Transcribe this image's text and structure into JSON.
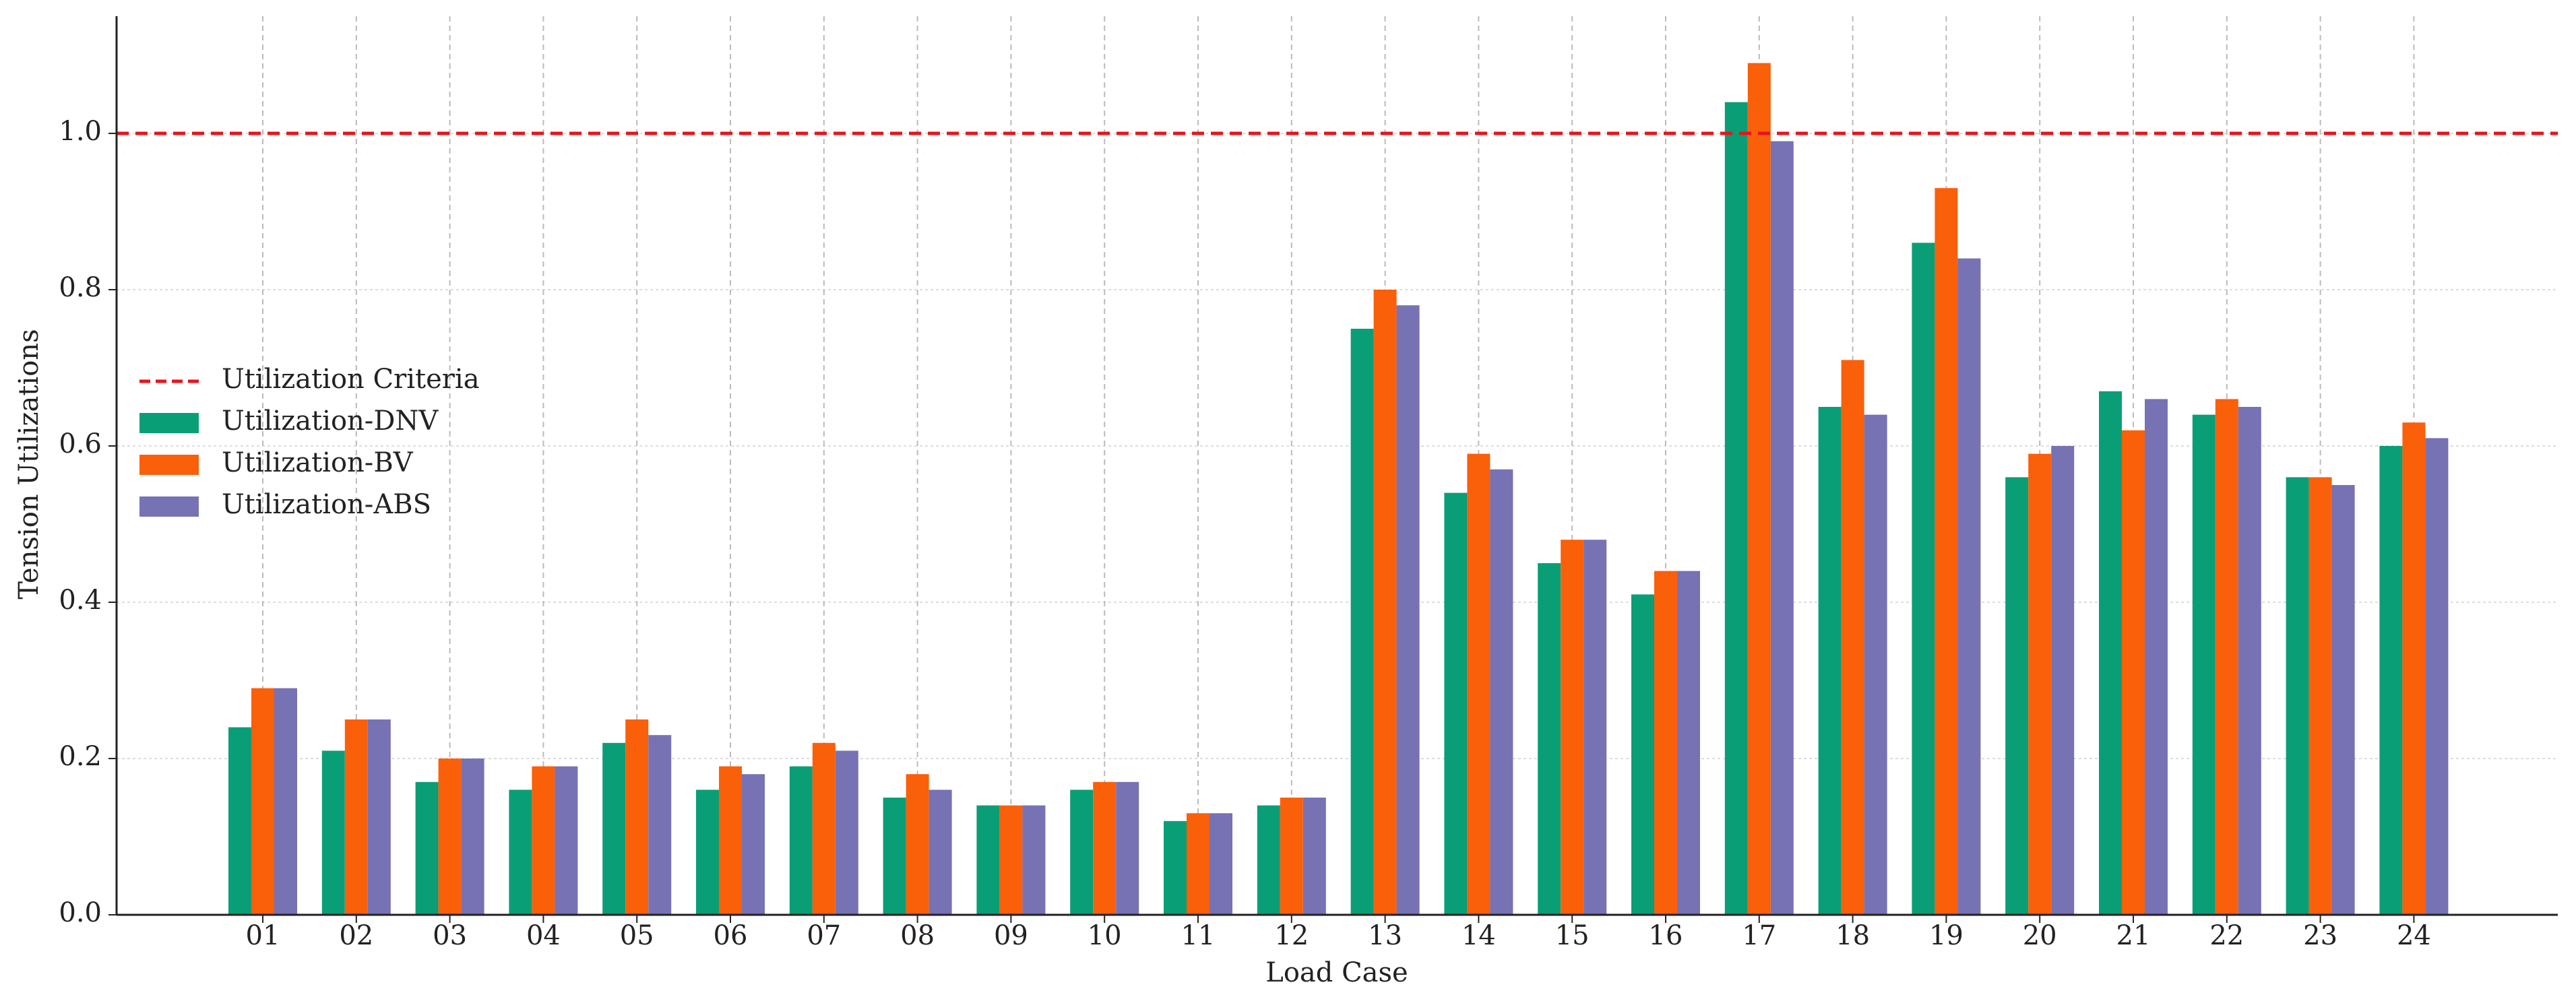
{
  "chart_data": {
    "type": "bar",
    "x_label": "Load Case",
    "y_label": "Tension Utilizations",
    "categories": [
      "01",
      "02",
      "03",
      "04",
      "05",
      "06",
      "07",
      "08",
      "09",
      "10",
      "11",
      "12",
      "13",
      "14",
      "15",
      "16",
      "17",
      "18",
      "19",
      "20",
      "21",
      "22",
      "23",
      "24"
    ],
    "series": [
      {
        "name": "Utilization-DNV",
        "color": "#0a9e76",
        "values": [
          0.24,
          0.21,
          0.17,
          0.16,
          0.22,
          0.16,
          0.19,
          0.15,
          0.14,
          0.16,
          0.12,
          0.14,
          0.75,
          0.54,
          0.45,
          0.41,
          1.04,
          0.65,
          0.86,
          0.56,
          0.67,
          0.64,
          0.56,
          0.6
        ]
      },
      {
        "name": "Utilization-BV",
        "color": "#fa5f0a",
        "values": [
          0.29,
          0.25,
          0.2,
          0.19,
          0.25,
          0.19,
          0.22,
          0.18,
          0.14,
          0.17,
          0.13,
          0.15,
          0.8,
          0.59,
          0.48,
          0.44,
          1.09,
          0.71,
          0.93,
          0.59,
          0.62,
          0.66,
          0.56,
          0.63
        ]
      },
      {
        "name": "Utilization-ABS",
        "color": "#7672b4",
        "values": [
          0.29,
          0.25,
          0.2,
          0.19,
          0.23,
          0.18,
          0.21,
          0.16,
          0.14,
          0.17,
          0.13,
          0.15,
          0.78,
          0.57,
          0.48,
          0.44,
          0.99,
          0.64,
          0.84,
          0.6,
          0.66,
          0.65,
          0.55,
          0.61
        ]
      }
    ],
    "threshold": {
      "name": "Utilization Criteria",
      "value": 1.0,
      "color": "#e8141c"
    },
    "ylim": [
      0,
      1.15
    ],
    "yticks": [
      {
        "value": 0,
        "label": "0.0"
      },
      0.2,
      0.4,
      0.6,
      0.8,
      {
        "value": 1,
        "label": "1.0"
      }
    ],
    "grid": true,
    "legend": "left"
  }
}
